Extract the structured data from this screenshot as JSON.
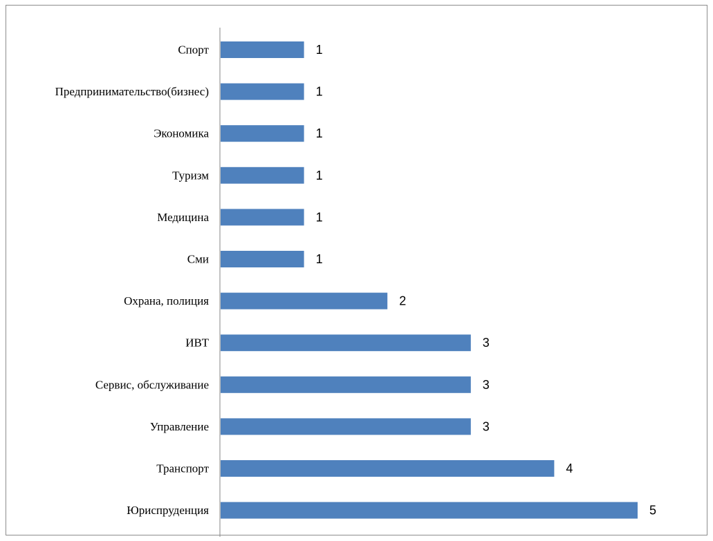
{
  "chart_data": {
    "type": "bar",
    "orientation": "horizontal",
    "categories": [
      "Спорт",
      "Предпринимательство(бизнес)",
      "Экономика",
      "Туризм",
      "Медицина",
      "Сми",
      "Охрана, полиция",
      "ИВТ",
      "Сервис, обслуживание",
      "Управление",
      "Транспорт",
      "Юриспруденция"
    ],
    "values": [
      1,
      1,
      1,
      1,
      1,
      1,
      2,
      3,
      3,
      3,
      4,
      5
    ],
    "xlim": [
      0,
      5
    ],
    "data_labels": true,
    "grid": false,
    "legend": "none",
    "bar_color": "#4f81bd",
    "axis_color": "#868686"
  }
}
